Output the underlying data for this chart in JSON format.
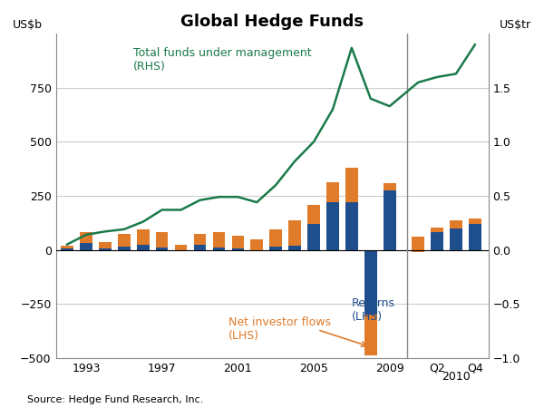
{
  "title": "Global Hedge Funds",
  "ylabel_left": "US$b",
  "ylabel_right": "US$tr",
  "source": "Source: Hedge Fund Research, Inc.",
  "returns": [
    5,
    30,
    5,
    15,
    25,
    10,
    -5,
    25,
    10,
    5,
    -5,
    15,
    20,
    120,
    220,
    220,
    -300,
    310,
    -10,
    80,
    100,
    120
  ],
  "net_flows": [
    15,
    50,
    30,
    60,
    70,
    70,
    30,
    50,
    70,
    60,
    55,
    80,
    115,
    90,
    95,
    160,
    -190,
    -35,
    70,
    25,
    35,
    25
  ],
  "line_x_years": [
    1992,
    1993,
    1994,
    1995,
    1996,
    1997,
    1998,
    1999,
    2000,
    2001,
    2002,
    2003,
    2004,
    2005,
    2006,
    2007,
    2008,
    2009,
    2009.25,
    2009.5,
    2009.75,
    2010.0
  ],
  "line_y": [
    0.05,
    0.14,
    0.17,
    0.19,
    0.26,
    0.37,
    0.37,
    0.46,
    0.49,
    0.49,
    0.44,
    0.6,
    0.82,
    1.0,
    1.3,
    1.87,
    1.4,
    1.33,
    1.55,
    1.6,
    1.63,
    1.9
  ],
  "ylim_left": [
    -500,
    1000
  ],
  "ylim_right": [
    -1.0,
    2.0
  ],
  "yticks_left": [
    -500,
    -250,
    0,
    250,
    500,
    750
  ],
  "yticks_right": [
    -1.0,
    -0.5,
    0.0,
    0.5,
    1.0,
    1.5
  ],
  "bar_color_returns": "#1f4e8c",
  "bar_color_flows": "#e07b2a",
  "line_color": "#1a7a4a",
  "grid_color": "#cccccc",
  "vline_color": "#888888",
  "annotation_flows": "Net investor flows\n(LHS)",
  "annotation_line": "Total funds under management\n(RHS)",
  "annotation_returns_color": "#1f4e8c",
  "annotation_flows_color": "#e07b2a",
  "annotation_line_color": "#1a7a4a",
  "tick_years": [
    1993,
    1997,
    2001,
    2005,
    2009
  ],
  "background_color": "#ffffff"
}
